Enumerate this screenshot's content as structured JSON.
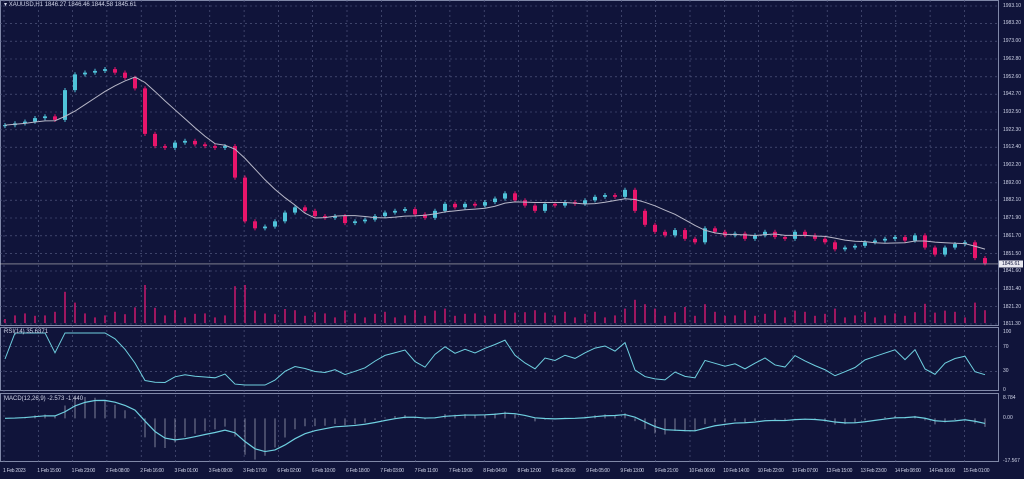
{
  "header": {
    "symbol": "XAUUSD,H1",
    "ohlc": "1846.27 1846.46 1844.58 1845.61"
  },
  "rsi_label": "RSI(14) 35.6371",
  "macd_label": "MACD(12,26,9) -2.573 -1.440",
  "colors": {
    "background": "#10143a",
    "bull": "#4fc3d9",
    "bear": "#e8156b",
    "grid": "#5a6088",
    "ma": "#b8b8c8",
    "indicator": "#6fd0e0",
    "volume": "#c0186a"
  },
  "chart_data": {
    "type": "candlestick",
    "price_ticks": [
      "1993.10",
      "1983.20",
      "1973.00",
      "1962.80",
      "1952.60",
      "1942.70",
      "1932.50",
      "1922.30",
      "1912.40",
      "1902.20",
      "1892.00",
      "1882.10",
      "1871.90",
      "1861.70",
      "1851.50",
      "1841.60",
      "1831.40",
      "1821.20",
      "1811.30"
    ],
    "price_range": [
      1811.3,
      1993.1
    ],
    "current_price": "1845.61",
    "rsi_ticks": [
      "100",
      "70",
      "30",
      "0"
    ],
    "macd_ticks": [
      "8.784",
      "0.00",
      "-17.567"
    ],
    "macd_range": [
      -17.567,
      8.784
    ],
    "time_ticks": [
      "1 Feb 2023",
      "1 Feb 15:00",
      "1 Feb 23:00",
      "2 Feb 08:00",
      "2 Feb 16:00",
      "3 Feb 01:00",
      "3 Feb 09:00",
      "3 Feb 17:00",
      "6 Feb 02:00",
      "6 Feb 10:00",
      "6 Feb 18:00",
      "7 Feb 03:00",
      "7 Feb 11:00",
      "7 Feb 19:00",
      "8 Feb 04:00",
      "8 Feb 12:00",
      "8 Feb 20:00",
      "9 Feb 05:00",
      "9 Feb 13:00",
      "9 Feb 21:00",
      "10 Feb 06:00",
      "10 Feb 14:00",
      "10 Feb 22:00",
      "13 Feb 07:00",
      "13 Feb 15:00",
      "13 Feb 23:00",
      "14 Feb 08:00",
      "14 Feb 16:00",
      "15 Feb 01:00"
    ],
    "closes": [
      1925,
      1926,
      1927,
      1929,
      1930,
      1928,
      1945,
      1954,
      1955,
      1956,
      1957,
      1955,
      1952,
      1946,
      1920,
      1913,
      1912,
      1915,
      1916,
      1914,
      1913,
      1912,
      1913,
      1895,
      1870,
      1866,
      1867,
      1870,
      1875,
      1878,
      1876,
      1873,
      1872,
      1873,
      1869,
      1870,
      1871,
      1873,
      1875,
      1876,
      1877,
      1874,
      1872,
      1876,
      1880,
      1878,
      1880,
      1879,
      1881,
      1883,
      1886,
      1882,
      1879,
      1876,
      1880,
      1879,
      1881,
      1880,
      1882,
      1884,
      1885,
      1884,
      1888,
      1876,
      1868,
      1864,
      1862,
      1865,
      1860,
      1858,
      1866,
      1864,
      1862,
      1863,
      1860,
      1862,
      1864,
      1861,
      1860,
      1864,
      1862,
      1860,
      1858,
      1854,
      1855,
      1856,
      1858,
      1859,
      1860,
      1861,
      1859,
      1862,
      1855,
      1851,
      1855,
      1857,
      1858,
      1849,
      1846
    ]
  }
}
